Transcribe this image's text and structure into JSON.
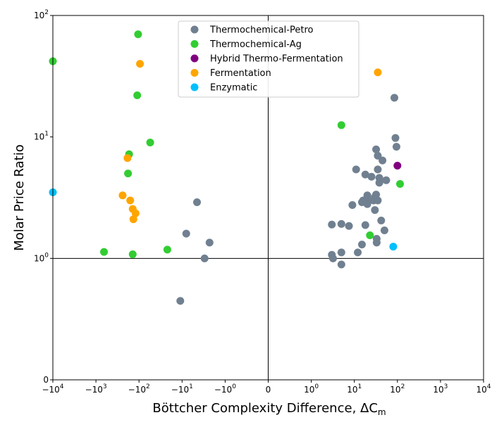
{
  "chart_data": {
    "type": "scatter",
    "title": "",
    "xlabel": "Böttcher Complexity Difference, ΔC",
    "xlabel_sub": "m",
    "ylabel": "Molar Price Ratio",
    "x_scale": "symlog",
    "y_scale": "symlog",
    "xlim": [
      -10000,
      10000
    ],
    "ylim": [
      0,
      100
    ],
    "x_ticks": [
      {
        "value": -10000,
        "base": "−10",
        "exp": "4"
      },
      {
        "value": -1000,
        "base": "−10",
        "exp": "3"
      },
      {
        "value": -100,
        "base": "−10",
        "exp": "2"
      },
      {
        "value": -10,
        "base": "−10",
        "exp": "1"
      },
      {
        "value": -1,
        "base": "−10",
        "exp": "0"
      },
      {
        "value": 0,
        "base": "0",
        "exp": ""
      },
      {
        "value": 1,
        "base": "10",
        "exp": "0"
      },
      {
        "value": 10,
        "base": "10",
        "exp": "1"
      },
      {
        "value": 100,
        "base": "10",
        "exp": "2"
      },
      {
        "value": 1000,
        "base": "10",
        "exp": "3"
      },
      {
        "value": 10000,
        "base": "10",
        "exp": "4"
      }
    ],
    "y_ticks": [
      {
        "value": 0,
        "base": "0",
        "exp": ""
      },
      {
        "value": 1,
        "base": "10",
        "exp": "0"
      },
      {
        "value": 10,
        "base": "10",
        "exp": "1"
      },
      {
        "value": 100,
        "base": "10",
        "exp": "2"
      }
    ],
    "reference_lines": {
      "x": 0,
      "y": 1
    },
    "legend_position": "top-center",
    "grid": false,
    "series": [
      {
        "name": "Thermochemical-Petro",
        "color": "#708090",
        "points": [
          [
            -4.5,
            2.9
          ],
          [
            -8,
            1.6
          ],
          [
            -11,
            0.65
          ],
          [
            -2.3,
            1.35
          ],
          [
            -3,
            1.0
          ],
          [
            3,
            1.07
          ],
          [
            3.2,
            1.0
          ],
          [
            3,
            1.9
          ],
          [
            5,
            1.92
          ],
          [
            5,
            1.12
          ],
          [
            5,
            0.95
          ],
          [
            7.5,
            1.85
          ],
          [
            9,
            2.75
          ],
          [
            11,
            5.4
          ],
          [
            12,
            1.12
          ],
          [
            15,
            1.3
          ],
          [
            15,
            2.9
          ],
          [
            16,
            3.0
          ],
          [
            18,
            1.88
          ],
          [
            18,
            4.9
          ],
          [
            20,
            3.3
          ],
          [
            20,
            2.8
          ],
          [
            22,
            3.0
          ],
          [
            25,
            4.7
          ],
          [
            28,
            3.0
          ],
          [
            30,
            2.5
          ],
          [
            30,
            3.2
          ],
          [
            32,
            3.35
          ],
          [
            32,
            7.9
          ],
          [
            33,
            1.45
          ],
          [
            33,
            1.35
          ],
          [
            35,
            3.0
          ],
          [
            35,
            5.4
          ],
          [
            35,
            7.0
          ],
          [
            38,
            4.2
          ],
          [
            38,
            4.6
          ],
          [
            42,
            2.05
          ],
          [
            45,
            6.4
          ],
          [
            50,
            1.7
          ],
          [
            55,
            4.4
          ],
          [
            85,
            21
          ],
          [
            90,
            9.8
          ],
          [
            95,
            8.3
          ]
        ]
      },
      {
        "name": "Thermochemical-Ag",
        "color": "#32cd32",
        "points": [
          [
            -10000,
            42
          ],
          [
            -105,
            70
          ],
          [
            -110,
            22
          ],
          [
            -55,
            9.0
          ],
          [
            -170,
            7.2
          ],
          [
            -180,
            5.0
          ],
          [
            -650,
            1.13
          ],
          [
            -140,
            1.08
          ],
          [
            -22,
            1.18
          ],
          [
            5,
            12.5
          ],
          [
            23,
            1.55
          ],
          [
            115,
            4.1
          ]
        ]
      },
      {
        "name": "Hybrid Thermo-Fermentation",
        "color": "#800080",
        "points": [
          [
            100,
            5.8
          ]
        ]
      },
      {
        "name": "Fermentation",
        "color": "#ffa500",
        "points": [
          [
            -95,
            40
          ],
          [
            -185,
            6.7
          ],
          [
            -240,
            3.3
          ],
          [
            -160,
            3.0
          ],
          [
            -140,
            2.55
          ],
          [
            -120,
            2.35
          ],
          [
            -135,
            2.1
          ],
          [
            35,
            34
          ]
        ]
      },
      {
        "name": "Enzymatic",
        "color": "#00bfff",
        "points": [
          [
            -10000,
            3.5
          ],
          [
            80,
            1.25
          ]
        ]
      }
    ]
  }
}
